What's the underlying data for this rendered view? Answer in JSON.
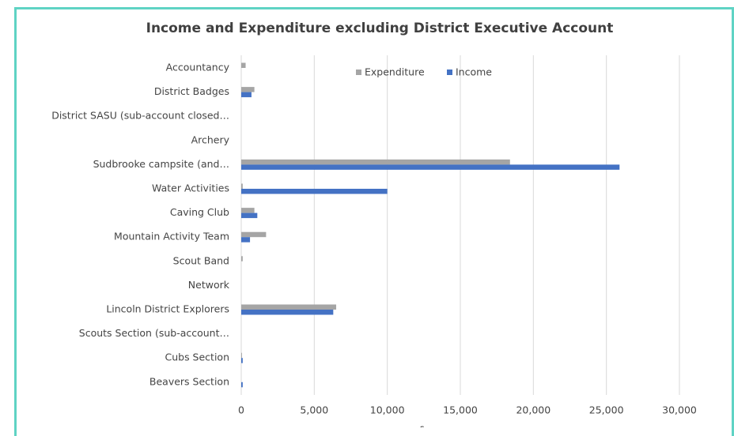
{
  "chart_data": {
    "type": "hbar",
    "title": "Income and Expenditure excluding District Executive Account",
    "x_label": "£",
    "categories": [
      "Accountancy",
      "District Badges",
      "District SASU (sub-account closed…",
      "Archery",
      "Sudbrooke campsite (and…",
      "Water Activities",
      "Caving Club",
      "Mountain Activity Team",
      "Scout Band",
      "Network",
      "Lincoln District Explorers",
      "Scouts Section (sub-account…",
      "Cubs Section",
      "Beavers Section"
    ],
    "series": [
      {
        "name": "Expenditure",
        "color": "#a5a5a5",
        "values": [
          300,
          900,
          0,
          0,
          18400,
          100,
          900,
          1700,
          100,
          0,
          6500,
          0,
          50,
          0
        ]
      },
      {
        "name": "Income",
        "color": "#4472c4",
        "values": [
          0,
          700,
          0,
          0,
          25900,
          10000,
          1100,
          600,
          0,
          0,
          6300,
          0,
          100,
          100
        ]
      }
    ],
    "xlim": [
      0,
      30000
    ],
    "xticks": [
      {
        "value": 0,
        "label": "0"
      },
      {
        "value": 5000,
        "label": "5,000"
      },
      {
        "value": 10000,
        "label": "10,000"
      },
      {
        "value": 15000,
        "label": "15,000"
      },
      {
        "value": 20000,
        "label": "20,000"
      },
      {
        "value": 25000,
        "label": "25,000"
      },
      {
        "value": 30000,
        "label": "30,000"
      }
    ],
    "grid": true,
    "legend": "top"
  }
}
